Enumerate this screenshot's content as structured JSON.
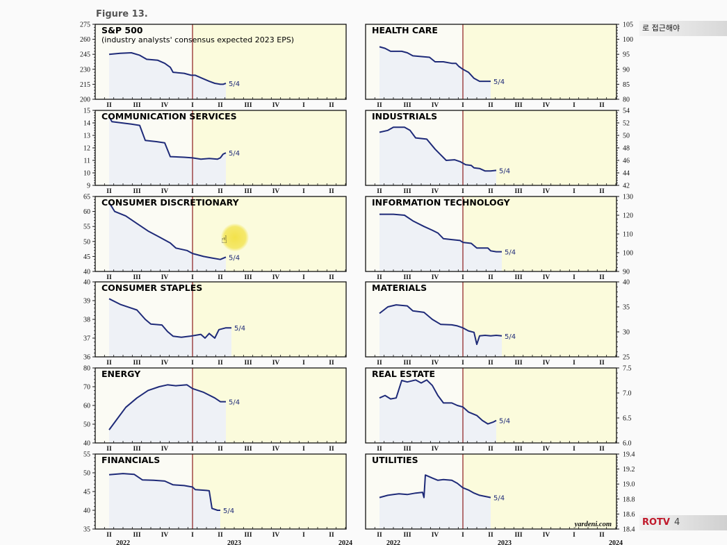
{
  "chart_data": {
    "type": "line",
    "figure_label": "Figure 13.",
    "credit": "yardeni.com",
    "x_quarters": [
      "II",
      "III",
      "IV",
      "I",
      "II",
      "III",
      "IV",
      "I",
      "II"
    ],
    "x_years": [
      "2022",
      "2023",
      "2024"
    ],
    "end_label": "5/4",
    "panels": [
      {
        "title": "S&P 500",
        "subtitle": "(industry analysts' consensus expected 2023 EPS)",
        "ylim": [
          200,
          275
        ],
        "ticks": [
          "200",
          "215",
          "230",
          "245",
          "260",
          "275"
        ],
        "axis": "left",
        "points": [
          [
            0,
            245
          ],
          [
            0.4,
            246
          ],
          [
            0.8,
            246.5
          ],
          [
            1.1,
            244
          ],
          [
            1.35,
            240
          ],
          [
            1.75,
            239
          ],
          [
            2.0,
            236
          ],
          [
            2.2,
            232
          ],
          [
            2.3,
            227
          ],
          [
            2.7,
            226
          ],
          [
            2.95,
            224
          ],
          [
            3.1,
            224
          ],
          [
            3.35,
            221
          ],
          [
            3.6,
            218
          ],
          [
            3.8,
            216
          ],
          [
            4.0,
            215
          ],
          [
            4.1,
            215
          ],
          [
            4.2,
            216
          ]
        ]
      },
      {
        "title": "HEALTH CARE",
        "subtitle": "",
        "ylim": [
          80,
          105
        ],
        "ticks": [
          "80",
          "85",
          "90",
          "95",
          "100",
          "105"
        ],
        "axis": "right",
        "points": [
          [
            0,
            97.5
          ],
          [
            0.2,
            97
          ],
          [
            0.4,
            96
          ],
          [
            0.8,
            96
          ],
          [
            1.0,
            95.5
          ],
          [
            1.2,
            94.5
          ],
          [
            1.8,
            94
          ],
          [
            2.0,
            92.5
          ],
          [
            2.3,
            92.5
          ],
          [
            2.6,
            92
          ],
          [
            2.75,
            92
          ],
          [
            2.85,
            91
          ],
          [
            3.0,
            90
          ],
          [
            3.2,
            89
          ],
          [
            3.4,
            87
          ],
          [
            3.6,
            86
          ],
          [
            4.0,
            86
          ]
        ]
      },
      {
        "title": "COMMUNICATION SERVICES",
        "subtitle": "",
        "ylim": [
          9,
          15
        ],
        "ticks": [
          "9",
          "10",
          "11",
          "12",
          "13",
          "14",
          "15"
        ],
        "axis": "left",
        "points": [
          [
            0,
            14.5
          ],
          [
            0.1,
            14.1
          ],
          [
            0.8,
            13.9
          ],
          [
            1.1,
            13.8
          ],
          [
            1.3,
            12.6
          ],
          [
            1.7,
            12.5
          ],
          [
            2.0,
            12.4
          ],
          [
            2.2,
            11.3
          ],
          [
            2.7,
            11.25
          ],
          [
            3.0,
            11.2
          ],
          [
            3.3,
            11.1
          ],
          [
            3.6,
            11.15
          ],
          [
            3.9,
            11.1
          ],
          [
            4.0,
            11.2
          ],
          [
            4.1,
            11.5
          ],
          [
            4.2,
            11.6
          ]
        ]
      },
      {
        "title": "INDUSTRIALS",
        "subtitle": "",
        "ylim": [
          42,
          54
        ],
        "ticks": [
          "42",
          "44",
          "46",
          "48",
          "50",
          "52",
          "54"
        ],
        "axis": "right",
        "points": [
          [
            0,
            50.5
          ],
          [
            0.3,
            50.8
          ],
          [
            0.5,
            51.3
          ],
          [
            0.9,
            51.3
          ],
          [
            1.1,
            50.8
          ],
          [
            1.3,
            49.6
          ],
          [
            1.7,
            49.4
          ],
          [
            2.0,
            47.8
          ],
          [
            2.2,
            46.9
          ],
          [
            2.4,
            46.0
          ],
          [
            2.7,
            46.1
          ],
          [
            2.9,
            45.8
          ],
          [
            3.1,
            45.3
          ],
          [
            3.3,
            45.2
          ],
          [
            3.4,
            44.8
          ],
          [
            3.6,
            44.7
          ],
          [
            3.8,
            44.3
          ],
          [
            4.0,
            44.3
          ],
          [
            4.2,
            44.4
          ]
        ]
      },
      {
        "title": "CONSUMER DISCRETIONARY",
        "subtitle": "",
        "ylim": [
          40,
          65
        ],
        "ticks": [
          "40",
          "45",
          "50",
          "55",
          "60",
          "65"
        ],
        "axis": "left",
        "points": [
          [
            0,
            63
          ],
          [
            0.2,
            60
          ],
          [
            0.6,
            58.5
          ],
          [
            1.0,
            56
          ],
          [
            1.4,
            53.5
          ],
          [
            1.8,
            51.5
          ],
          [
            2.2,
            49.5
          ],
          [
            2.4,
            47.8
          ],
          [
            2.8,
            47
          ],
          [
            3.0,
            46
          ],
          [
            3.4,
            45
          ],
          [
            3.7,
            44.5
          ],
          [
            4.0,
            44
          ],
          [
            4.2,
            44.8
          ]
        ]
      },
      {
        "title": "INFORMATION TECHNOLOGY",
        "subtitle": "",
        "ylim": [
          90,
          130
        ],
        "ticks": [
          "90",
          "100",
          "110",
          "120",
          "130"
        ],
        "axis": "right",
        "points": [
          [
            0,
            120.5
          ],
          [
            0.5,
            120.5
          ],
          [
            0.9,
            120
          ],
          [
            1.2,
            117
          ],
          [
            1.6,
            114
          ],
          [
            1.9,
            112
          ],
          [
            2.1,
            110.5
          ],
          [
            2.3,
            107.5
          ],
          [
            2.6,
            107
          ],
          [
            2.9,
            106.5
          ],
          [
            3.0,
            105.5
          ],
          [
            3.3,
            105
          ],
          [
            3.5,
            102.5
          ],
          [
            3.9,
            102.5
          ],
          [
            4.0,
            101
          ],
          [
            4.2,
            100.5
          ],
          [
            4.4,
            100.5
          ]
        ]
      },
      {
        "title": "CONSUMER STAPLES",
        "subtitle": "",
        "ylim": [
          36,
          40
        ],
        "ticks": [
          "36",
          "37",
          "38",
          "39",
          "40"
        ],
        "axis": "left",
        "points": [
          [
            0,
            39.1
          ],
          [
            0.4,
            38.8
          ],
          [
            0.8,
            38.6
          ],
          [
            1.0,
            38.5
          ],
          [
            1.3,
            38.0
          ],
          [
            1.5,
            37.75
          ],
          [
            1.9,
            37.7
          ],
          [
            2.1,
            37.35
          ],
          [
            2.3,
            37.1
          ],
          [
            2.6,
            37.05
          ],
          [
            2.9,
            37.1
          ],
          [
            3.1,
            37.15
          ],
          [
            3.3,
            37.2
          ],
          [
            3.45,
            37.0
          ],
          [
            3.6,
            37.25
          ],
          [
            3.8,
            37.0
          ],
          [
            3.95,
            37.45
          ],
          [
            4.2,
            37.55
          ],
          [
            4.4,
            37.55
          ]
        ]
      },
      {
        "title": "MATERIALS",
        "subtitle": "",
        "ylim": [
          25,
          40
        ],
        "ticks": [
          "25",
          "30",
          "35",
          "40"
        ],
        "axis": "right",
        "points": [
          [
            0,
            33.7
          ],
          [
            0.3,
            35
          ],
          [
            0.6,
            35.4
          ],
          [
            1.0,
            35.2
          ],
          [
            1.2,
            34.2
          ],
          [
            1.6,
            33.9
          ],
          [
            1.9,
            32.5
          ],
          [
            2.2,
            31.5
          ],
          [
            2.6,
            31.4
          ],
          [
            2.8,
            31.2
          ],
          [
            3.0,
            30.8
          ],
          [
            3.2,
            30.2
          ],
          [
            3.4,
            29.9
          ],
          [
            3.5,
            27.5
          ],
          [
            3.6,
            29.2
          ],
          [
            3.8,
            29.3
          ],
          [
            4.0,
            29.2
          ],
          [
            4.2,
            29.3
          ],
          [
            4.4,
            29.2
          ]
        ]
      },
      {
        "title": "ENERGY",
        "subtitle": "",
        "ylim": [
          40,
          80
        ],
        "ticks": [
          "40",
          "50",
          "60",
          "70",
          "80"
        ],
        "axis": "left",
        "points": [
          [
            0,
            47
          ],
          [
            0.3,
            53
          ],
          [
            0.6,
            59
          ],
          [
            1.0,
            64
          ],
          [
            1.4,
            68
          ],
          [
            1.8,
            70
          ],
          [
            2.1,
            71
          ],
          [
            2.4,
            70.5
          ],
          [
            2.8,
            71
          ],
          [
            3.0,
            69
          ],
          [
            3.4,
            67
          ],
          [
            3.8,
            64
          ],
          [
            4.0,
            62
          ],
          [
            4.2,
            62
          ]
        ]
      },
      {
        "title": "REAL ESTATE",
        "subtitle": "",
        "ylim": [
          6.0,
          7.5
        ],
        "ticks": [
          "6.0",
          "6.5",
          "7.0",
          "7.5"
        ],
        "axis": "right",
        "points": [
          [
            0,
            6.9
          ],
          [
            0.2,
            6.95
          ],
          [
            0.4,
            6.88
          ],
          [
            0.6,
            6.9
          ],
          [
            0.8,
            7.25
          ],
          [
            1.0,
            7.22
          ],
          [
            1.3,
            7.26
          ],
          [
            1.5,
            7.2
          ],
          [
            1.7,
            7.26
          ],
          [
            1.9,
            7.15
          ],
          [
            2.1,
            6.95
          ],
          [
            2.3,
            6.8
          ],
          [
            2.6,
            6.8
          ],
          [
            2.8,
            6.75
          ],
          [
            3.0,
            6.72
          ],
          [
            3.2,
            6.62
          ],
          [
            3.5,
            6.55
          ],
          [
            3.7,
            6.45
          ],
          [
            3.9,
            6.38
          ],
          [
            4.1,
            6.42
          ],
          [
            4.2,
            6.45
          ]
        ]
      },
      {
        "title": "FINANCIALS",
        "subtitle": "",
        "ylim": [
          35,
          55
        ],
        "ticks": [
          "35",
          "40",
          "45",
          "50",
          "55"
        ],
        "axis": "left",
        "points": [
          [
            0,
            49.5
          ],
          [
            0.5,
            49.8
          ],
          [
            0.9,
            49.6
          ],
          [
            1.2,
            48.1
          ],
          [
            1.6,
            48.0
          ],
          [
            2.0,
            47.8
          ],
          [
            2.3,
            46.8
          ],
          [
            2.7,
            46.6
          ],
          [
            3.0,
            46.2
          ],
          [
            3.1,
            45.5
          ],
          [
            3.5,
            45.3
          ],
          [
            3.6,
            45.2
          ],
          [
            3.7,
            40.5
          ],
          [
            3.9,
            40.0
          ],
          [
            4.0,
            40.0
          ]
        ]
      },
      {
        "title": "UTILITIES",
        "subtitle": "",
        "ylim": [
          18.4,
          19.4
        ],
        "ticks": [
          "18.4",
          "18.6",
          "18.8",
          "19.0",
          "19.2",
          "19.4"
        ],
        "axis": "right",
        "points": [
          [
            0,
            18.82
          ],
          [
            0.3,
            18.85
          ],
          [
            0.5,
            18.86
          ],
          [
            0.7,
            18.87
          ],
          [
            1.0,
            18.86
          ],
          [
            1.3,
            18.88
          ],
          [
            1.55,
            18.89
          ],
          [
            1.6,
            18.82
          ],
          [
            1.65,
            19.12
          ],
          [
            1.9,
            19.08
          ],
          [
            2.1,
            19.05
          ],
          [
            2.3,
            19.06
          ],
          [
            2.6,
            19.05
          ],
          [
            2.8,
            19.01
          ],
          [
            3.0,
            18.95
          ],
          [
            3.2,
            18.92
          ],
          [
            3.4,
            18.88
          ],
          [
            3.6,
            18.85
          ],
          [
            4.0,
            18.82
          ]
        ]
      }
    ]
  },
  "overlay": {
    "korean_caption": "로 접근해야",
    "channel_brand": "ROTV",
    "channel_number": "4"
  }
}
